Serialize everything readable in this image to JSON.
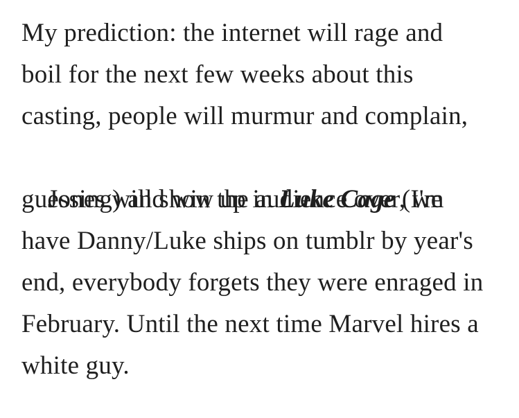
{
  "paragraph": {
    "lines": [
      {
        "text": "My prediction: the internet will rage and"
      },
      {
        "text": "boil for the next few weeks about this"
      },
      {
        "text": "casting, people will murmur and complain,"
      },
      {
        "pre": "Jones will show up in ",
        "emphasis": "Luke Cage",
        "post": " (I'm"
      },
      {
        "text": "guessing) and win the audience over, we"
      },
      {
        "text": "have Danny/Luke ships on tumblr by year's"
      },
      {
        "text": "end, everybody forgets they were enraged in"
      },
      {
        "text": "February. Until the next time Marvel hires a"
      },
      {
        "text": "white guy."
      }
    ],
    "emphasized_work_title": "Luke Cage",
    "text_color": "#1f1f1f",
    "background_color": "#ffffff"
  }
}
